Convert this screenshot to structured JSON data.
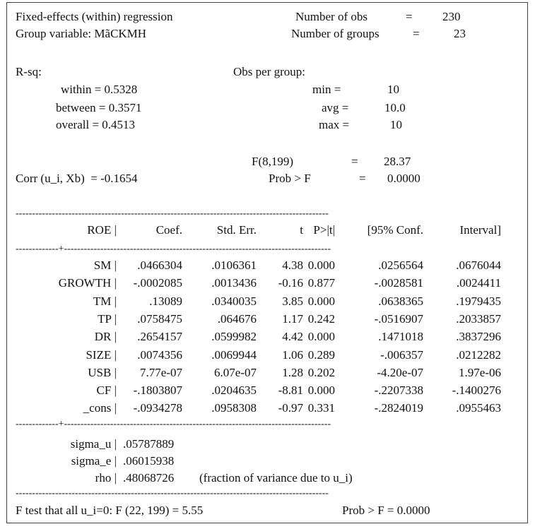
{
  "header": {
    "title": "Fixed-effects (within) regression",
    "group_variable": "Group variable: MãCKMH",
    "nobs_label": "Number of obs",
    "nobs_eq": "=",
    "nobs_value": "230",
    "ngroups_label": "Number of groups",
    "ngroups_eq": "=",
    "ngroups_value": "23"
  },
  "rsq": {
    "label": "R-sq:",
    "within": "within = 0.5328",
    "between": "between = 0.3571",
    "overall": "overall = 0.4513"
  },
  "obs_per_group": {
    "label": "Obs per group:",
    "min_label": "min =",
    "min_value": "10",
    "avg_label": "avg =",
    "avg_value": "10.0",
    "max_label": "max =",
    "max_value": "10"
  },
  "ftest_top": {
    "f_label": "F(8,199)",
    "f_eq": "=",
    "f_value": "28.37",
    "prob_label": "Prob > F",
    "prob_eq": "=",
    "prob_value": "0.0000"
  },
  "corr": "Corr (u_i, Xb)  = -0.1654",
  "table": {
    "dashes": "-----------------------------------------------------------------------------------------------",
    "sep": "-------------+---------------------------------------------------------------------------------",
    "headers": [
      "ROE |",
      "Coef.",
      "Std. Err.",
      "t",
      "P>|t|",
      "[95% Conf.",
      "Interval]"
    ],
    "rows": [
      [
        "SM |",
        ".0466304",
        ".0106361",
        "4.38",
        "0.000",
        ".0256564",
        ".0676044"
      ],
      [
        "GROWTH |",
        "-.0002085",
        ".0013436",
        "-0.16",
        "0.877",
        "-.0028581",
        ".0024411"
      ],
      [
        "TM |",
        ".13089",
        ".0340035",
        "3.85",
        "0.000",
        ".0638365",
        ".1979435"
      ],
      [
        "TP |",
        ".0758475",
        ".064676",
        "1.17",
        "0.242",
        "-.0516907",
        ".2033857"
      ],
      [
        "DR |",
        ".2654157",
        ".0599982",
        "4.42",
        "0.000",
        ".1471018",
        ".3837296"
      ],
      [
        "SIZE |",
        ".0074356",
        ".0069944",
        "1.06",
        "0.289",
        "-.006357",
        ".0212282"
      ],
      [
        "USB |",
        "7.77e-07",
        "6.07e-07",
        "1.28",
        "0.202",
        "-4.20e-07",
        "1.97e-06"
      ],
      [
        "CF |",
        "-.1803807",
        ".0204635",
        "-8.81",
        "0.000",
        "-.2207338",
        "-.1400276"
      ],
      [
        "_cons |",
        "-.0934278",
        ".0958308",
        "-0.97",
        "0.331",
        "-.2824019",
        ".0955463"
      ]
    ],
    "sigma_u_label": "sigma_u |",
    "sigma_u_value": ".05787889",
    "sigma_e_label": "sigma_e |",
    "sigma_e_value": ".06015938",
    "rho_label": "rho |",
    "rho_value": ".48068726",
    "rho_note": "(fraction of variance due to u_i)"
  },
  "footer": {
    "ftest": "F test that all u_i=0: F (22, 199) = 5.55",
    "prob": "Prob > F = 0.0000"
  }
}
